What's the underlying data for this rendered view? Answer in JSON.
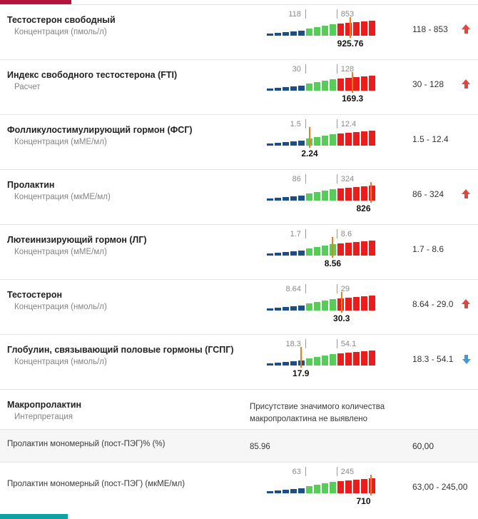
{
  "accents": {
    "top_bar_color": "#b5123e",
    "bottom_bar_color": "#0aa2a2"
  },
  "gauge_colors": {
    "low_zone": "#1c4f87",
    "normal_zone": "#58cc58",
    "high_zone": "#ea1c1c",
    "marker": "#ef7d1a"
  },
  "arrow_colors": {
    "up": "#e2453c",
    "down": "#3f9bdc"
  },
  "rows": [
    {
      "type": "gauge",
      "title": "Тестостерон свободный",
      "subtitle": "Концентрация (пмоль/л)",
      "low": "118",
      "high": "853",
      "value": "925.76",
      "range": "118 - 853",
      "arrow": "up",
      "marker_percent": 76
    },
    {
      "type": "gauge",
      "title": "Индекс свободного тестостерона (FTI)",
      "subtitle": "Расчет",
      "low": "30",
      "high": "128",
      "value": "169.3",
      "range": "30 - 128",
      "arrow": "up",
      "marker_percent": 78
    },
    {
      "type": "gauge",
      "title": "Фолликулостимулирующий гормон (ФСГ)",
      "subtitle": "Концентрация (мМЕ/мл)",
      "low": "1.5",
      "high": "12.4",
      "value": "2.24",
      "range": "1.5 - 12.4",
      "arrow": "none",
      "marker_percent": 39
    },
    {
      "type": "gauge",
      "title": "Пролактин",
      "subtitle": "Концентрация (мкМЕ/мл)",
      "low": "86",
      "high": "324",
      "value": "826",
      "range": "86 - 324",
      "arrow": "up",
      "marker_percent": 95
    },
    {
      "type": "gauge",
      "title": "Лютеинизирующий гормон (ЛГ)",
      "subtitle": "Концентрация (мМЕ/мл)",
      "low": "1.7",
      "high": "8.6",
      "value": "8.56",
      "range": "1.7 - 8.6",
      "arrow": "none",
      "marker_percent": 60
    },
    {
      "type": "gauge",
      "title": "Тестостерон",
      "subtitle": "Концентрация (нмоль/л)",
      "low": "8.64",
      "high": "29",
      "value": "30.3",
      "range": "8.64 - 29.0",
      "arrow": "up",
      "marker_percent": 68
    },
    {
      "type": "gauge",
      "title": "Глобулин, связывающий половые гормоны (ГСПГ)",
      "subtitle": "Концентрация (нмоль/л)",
      "low": "18.3",
      "high": "54.1",
      "value": "17.9",
      "range": "18.3 - 54.1",
      "arrow": "down",
      "marker_percent": 31
    },
    {
      "type": "text",
      "title": "Макропролактин",
      "subtitle": "Интерпретация",
      "middle_text": "Присутствие значимого количества макропролактина не выявлено",
      "range": "",
      "arrow": "none"
    },
    {
      "type": "value",
      "title": "Пролактин мономерный (пост-ПЭГ)% (%)",
      "subtitle": "",
      "middle_text": "85.96",
      "range": "60,00",
      "arrow": "none"
    },
    {
      "type": "gauge",
      "title": "Пролактин мономерный (пост-ПЭГ) (мкМЕ/мл)",
      "subtitle": "",
      "low": "63",
      "high": "245",
      "value": "710",
      "range": "63,00 - 245,00",
      "arrow": "none",
      "marker_percent": 95
    }
  ]
}
